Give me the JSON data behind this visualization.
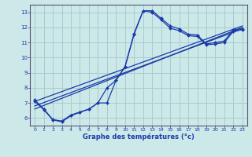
{
  "background_color": "#cce8e8",
  "grid_color": "#aacccc",
  "line_color": "#1a3aaa",
  "x_label": "Graphe des températures (°c)",
  "ylim": [
    5.5,
    13.5
  ],
  "xlim": [
    -0.5,
    23.5
  ],
  "yticks": [
    6,
    7,
    8,
    9,
    10,
    11,
    12,
    13
  ],
  "xticks": [
    0,
    1,
    2,
    3,
    4,
    5,
    6,
    7,
    8,
    9,
    10,
    11,
    12,
    13,
    14,
    15,
    16,
    17,
    18,
    19,
    20,
    21,
    22,
    23
  ],
  "series1_x": [
    0,
    1,
    2,
    3,
    4,
    5,
    6,
    7,
    8,
    9,
    10,
    11,
    12,
    13,
    14,
    15,
    16,
    17,
    18,
    19,
    20,
    21,
    22,
    23
  ],
  "series1_y": [
    7.2,
    6.6,
    5.9,
    5.8,
    6.2,
    6.4,
    6.6,
    7.0,
    7.0,
    8.5,
    9.4,
    11.6,
    13.1,
    13.1,
    12.6,
    12.1,
    11.9,
    11.55,
    11.5,
    10.9,
    11.0,
    11.1,
    11.85,
    11.9
  ],
  "series2_x": [
    0,
    1,
    2,
    3,
    4,
    5,
    6,
    7,
    8,
    9,
    10,
    11,
    12,
    13,
    14,
    15,
    16,
    17,
    18,
    19,
    20,
    21,
    22,
    23
  ],
  "series2_y": [
    7.1,
    6.55,
    5.88,
    5.75,
    6.15,
    6.38,
    6.58,
    7.0,
    8.0,
    8.5,
    9.4,
    11.55,
    13.1,
    13.0,
    12.5,
    11.95,
    11.78,
    11.45,
    11.4,
    10.85,
    10.9,
    11.0,
    11.75,
    11.85
  ],
  "series3_x": [
    0,
    23
  ],
  "series3_y": [
    6.6,
    12.0
  ],
  "series4_x": [
    0,
    23
  ],
  "series4_y": [
    7.1,
    12.1
  ],
  "series5_x": [
    0,
    23
  ],
  "series5_y": [
    6.8,
    11.9
  ]
}
